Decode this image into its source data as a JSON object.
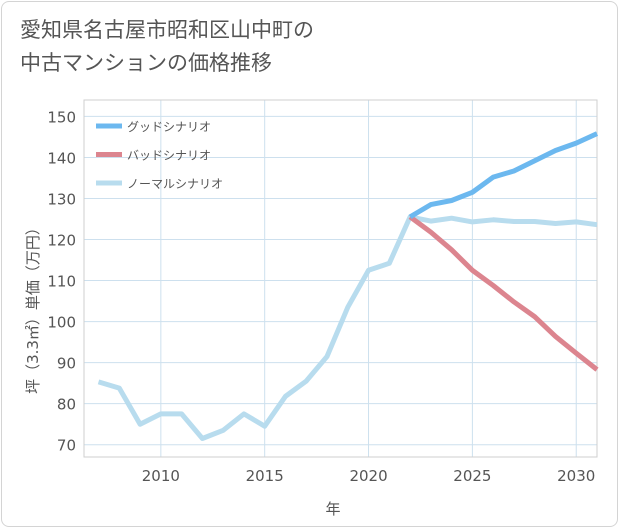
{
  "title": {
    "line1": "愛知県名古屋市昭和区山中町の",
    "line2": "中古マンションの価格推移"
  },
  "colors": {
    "good": "#6cb8ef",
    "bad": "#dc858f",
    "normal": "#b8dcee",
    "grid": "#cde0ee",
    "frame": "#cfcfcf"
  },
  "chart_data": {
    "type": "line",
    "xlabel": "年",
    "ylabel": "坪（3.3㎡）単価（万円）",
    "xlim": [
      2006.3,
      2031
    ],
    "ylim": [
      67,
      154
    ],
    "xticks": [
      2010,
      2015,
      2020,
      2025,
      2030
    ],
    "xtick_labels": [
      "2010",
      "2015",
      "2020",
      "2025",
      "2030"
    ],
    "yticks": [
      70,
      80,
      90,
      100,
      110,
      120,
      130,
      140,
      150
    ],
    "ytick_labels": [
      "70",
      "80",
      "90",
      "100",
      "110",
      "120",
      "130",
      "140",
      "150"
    ],
    "grid": true,
    "legend_position": "top-left",
    "series": [
      {
        "name": "グッドシナリオ",
        "key": "good",
        "x": [
          2022,
          2023,
          2024,
          2025,
          2026,
          2027,
          2028,
          2029,
          2030,
          2031
        ],
        "y": [
          125.5,
          128.5,
          129.5,
          131.5,
          135.2,
          136.7,
          139.2,
          141.7,
          143.5,
          145.8
        ]
      },
      {
        "name": "バッドシナリオ",
        "key": "bad",
        "x": [
          2022,
          2023,
          2024,
          2025,
          2026,
          2027,
          2028,
          2029,
          2030,
          2031
        ],
        "y": [
          125.5,
          121.8,
          117.5,
          112.5,
          108.8,
          104.8,
          101.2,
          96.4,
          92.3,
          88.3
        ]
      },
      {
        "name": "ノーマルシナリオ",
        "key": "normal",
        "x": [
          2007,
          2008,
          2009,
          2010,
          2011,
          2012,
          2013,
          2014,
          2015,
          2016,
          2017,
          2018,
          2019,
          2020,
          2021,
          2022,
          2023,
          2024,
          2025,
          2026,
          2027,
          2028,
          2029,
          2030,
          2031
        ],
        "y": [
          85.3,
          83.8,
          75.0,
          77.5,
          77.5,
          71.5,
          73.5,
          77.5,
          74.5,
          81.8,
          85.5,
          91.5,
          103.5,
          112.5,
          114.2,
          125.5,
          124.5,
          125.2,
          124.3,
          124.8,
          124.4,
          124.4,
          123.9,
          124.3,
          123.6
        ]
      }
    ]
  }
}
